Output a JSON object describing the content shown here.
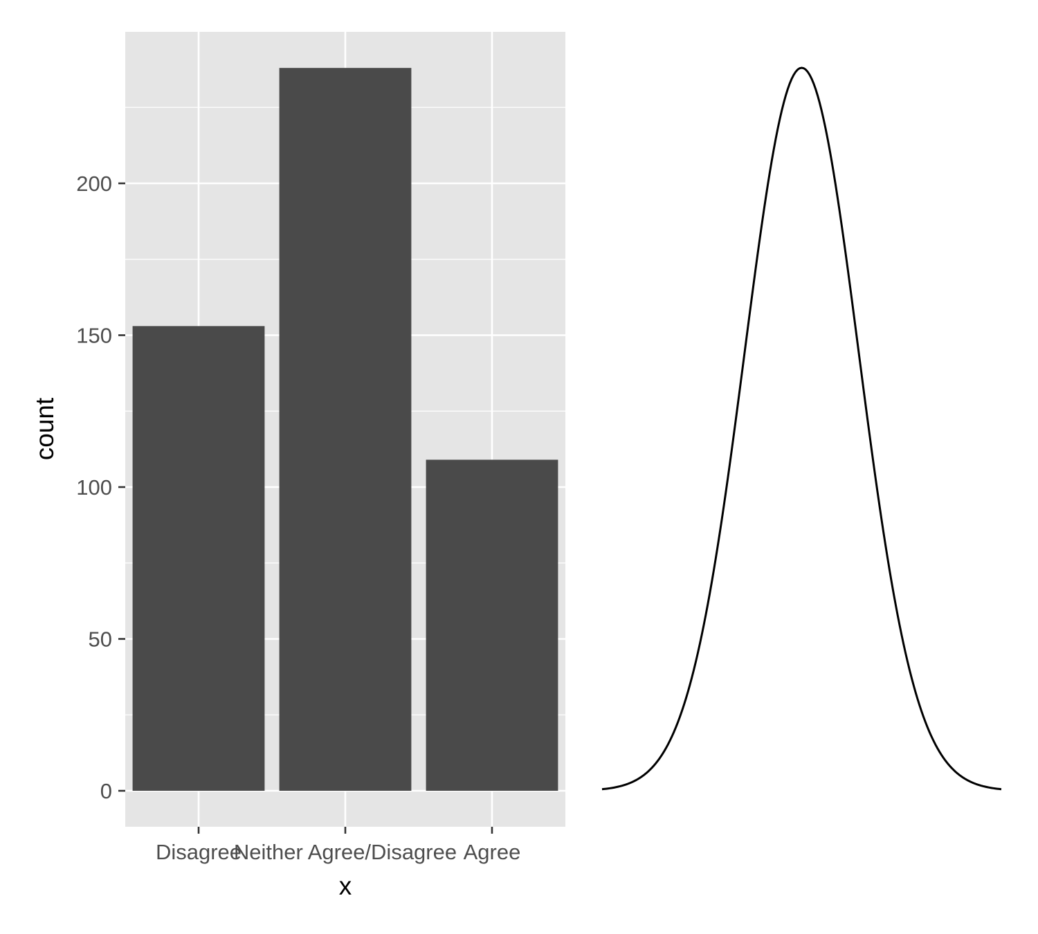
{
  "chart_data": [
    {
      "type": "bar",
      "categories": [
        "Disagree",
        "Neither Agree/Disagree",
        "Agree"
      ],
      "values": [
        153,
        238,
        109
      ],
      "xlabel": "x",
      "ylabel": "count",
      "ylim": [
        -12,
        250
      ],
      "yticks": [
        0,
        50,
        100,
        150,
        200
      ],
      "ytick_labels": [
        "0",
        "50",
        "100",
        "150",
        "200"
      ],
      "grid": true,
      "panel_color": "#e5e5e5",
      "grid_color": "#ffffff",
      "bar_color": "#4a4a4a"
    },
    {
      "type": "line",
      "description_shape": "normal-density",
      "mean": 0,
      "sd": 1,
      "xlim": [
        -3.5,
        3.5
      ],
      "axes_visible": false,
      "line_color": "#000000"
    }
  ]
}
